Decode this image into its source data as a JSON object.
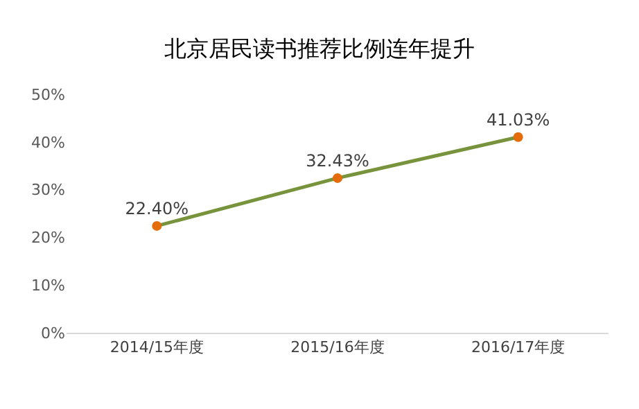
{
  "chart_data": {
    "type": "line",
    "title": "北京居民读书推荐比例连年提升",
    "categories": [
      "2014/15年度",
      "2015/16年度",
      "2016/17年度"
    ],
    "series": [
      {
        "color": "#77933c",
        "colors": [
          "#e46c0a",
          "#e46c0a",
          "#e46c0a"
        ],
        "values": [
          22.4,
          32.43,
          41.03
        ],
        "value_labels": [
          "22.40%",
          "32.43%",
          "41.03%"
        ]
      }
    ],
    "ylim": [
      0,
      50
    ],
    "yticks": [
      {
        "value": 0,
        "label": "0%"
      },
      {
        "value": 10,
        "label": "10%"
      },
      {
        "value": 20,
        "label": "20%"
      },
      {
        "value": 30,
        "label": "30%"
      },
      {
        "value": 40,
        "label": "40%"
      },
      {
        "value": 50,
        "label": "50%"
      }
    ],
    "grid": false,
    "legend": false,
    "marker": "circle",
    "line_style": "solid"
  }
}
